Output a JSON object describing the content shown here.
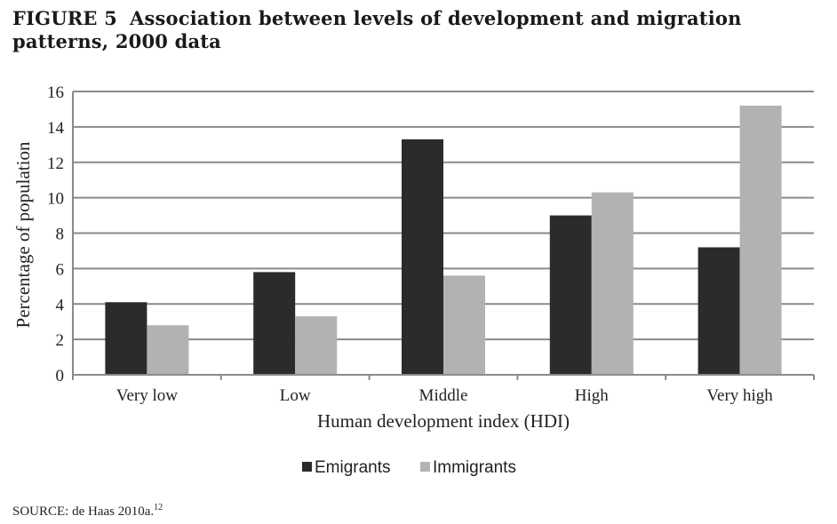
{
  "figure": {
    "label": "FIGURE 5",
    "caption": "Association between levels of development and migration patterns, 2000 data",
    "source": "SOURCE: de Haas 2010a.",
    "source_note": "12"
  },
  "chart_data": {
    "type": "bar",
    "title": "Association between levels of development and migration patterns, 2000 data",
    "xlabel": "Human development index (HDI)",
    "ylabel": "Percentage  of population",
    "categories": [
      "Very low",
      "Low",
      "Middle",
      "High",
      "Very high"
    ],
    "series": [
      {
        "name": "Emigrants",
        "color": "#2b2b2b",
        "values": [
          4.1,
          5.8,
          13.3,
          9.0,
          7.2
        ]
      },
      {
        "name": "Immigrants",
        "color": "#b2b2b2",
        "values": [
          2.8,
          3.3,
          5.6,
          10.3,
          15.2
        ]
      }
    ],
    "ylim": [
      0,
      16
    ],
    "yticks": [
      0,
      2,
      4,
      6,
      8,
      10,
      12,
      14,
      16
    ],
    "grid": true,
    "legend": "bottom-center"
  }
}
